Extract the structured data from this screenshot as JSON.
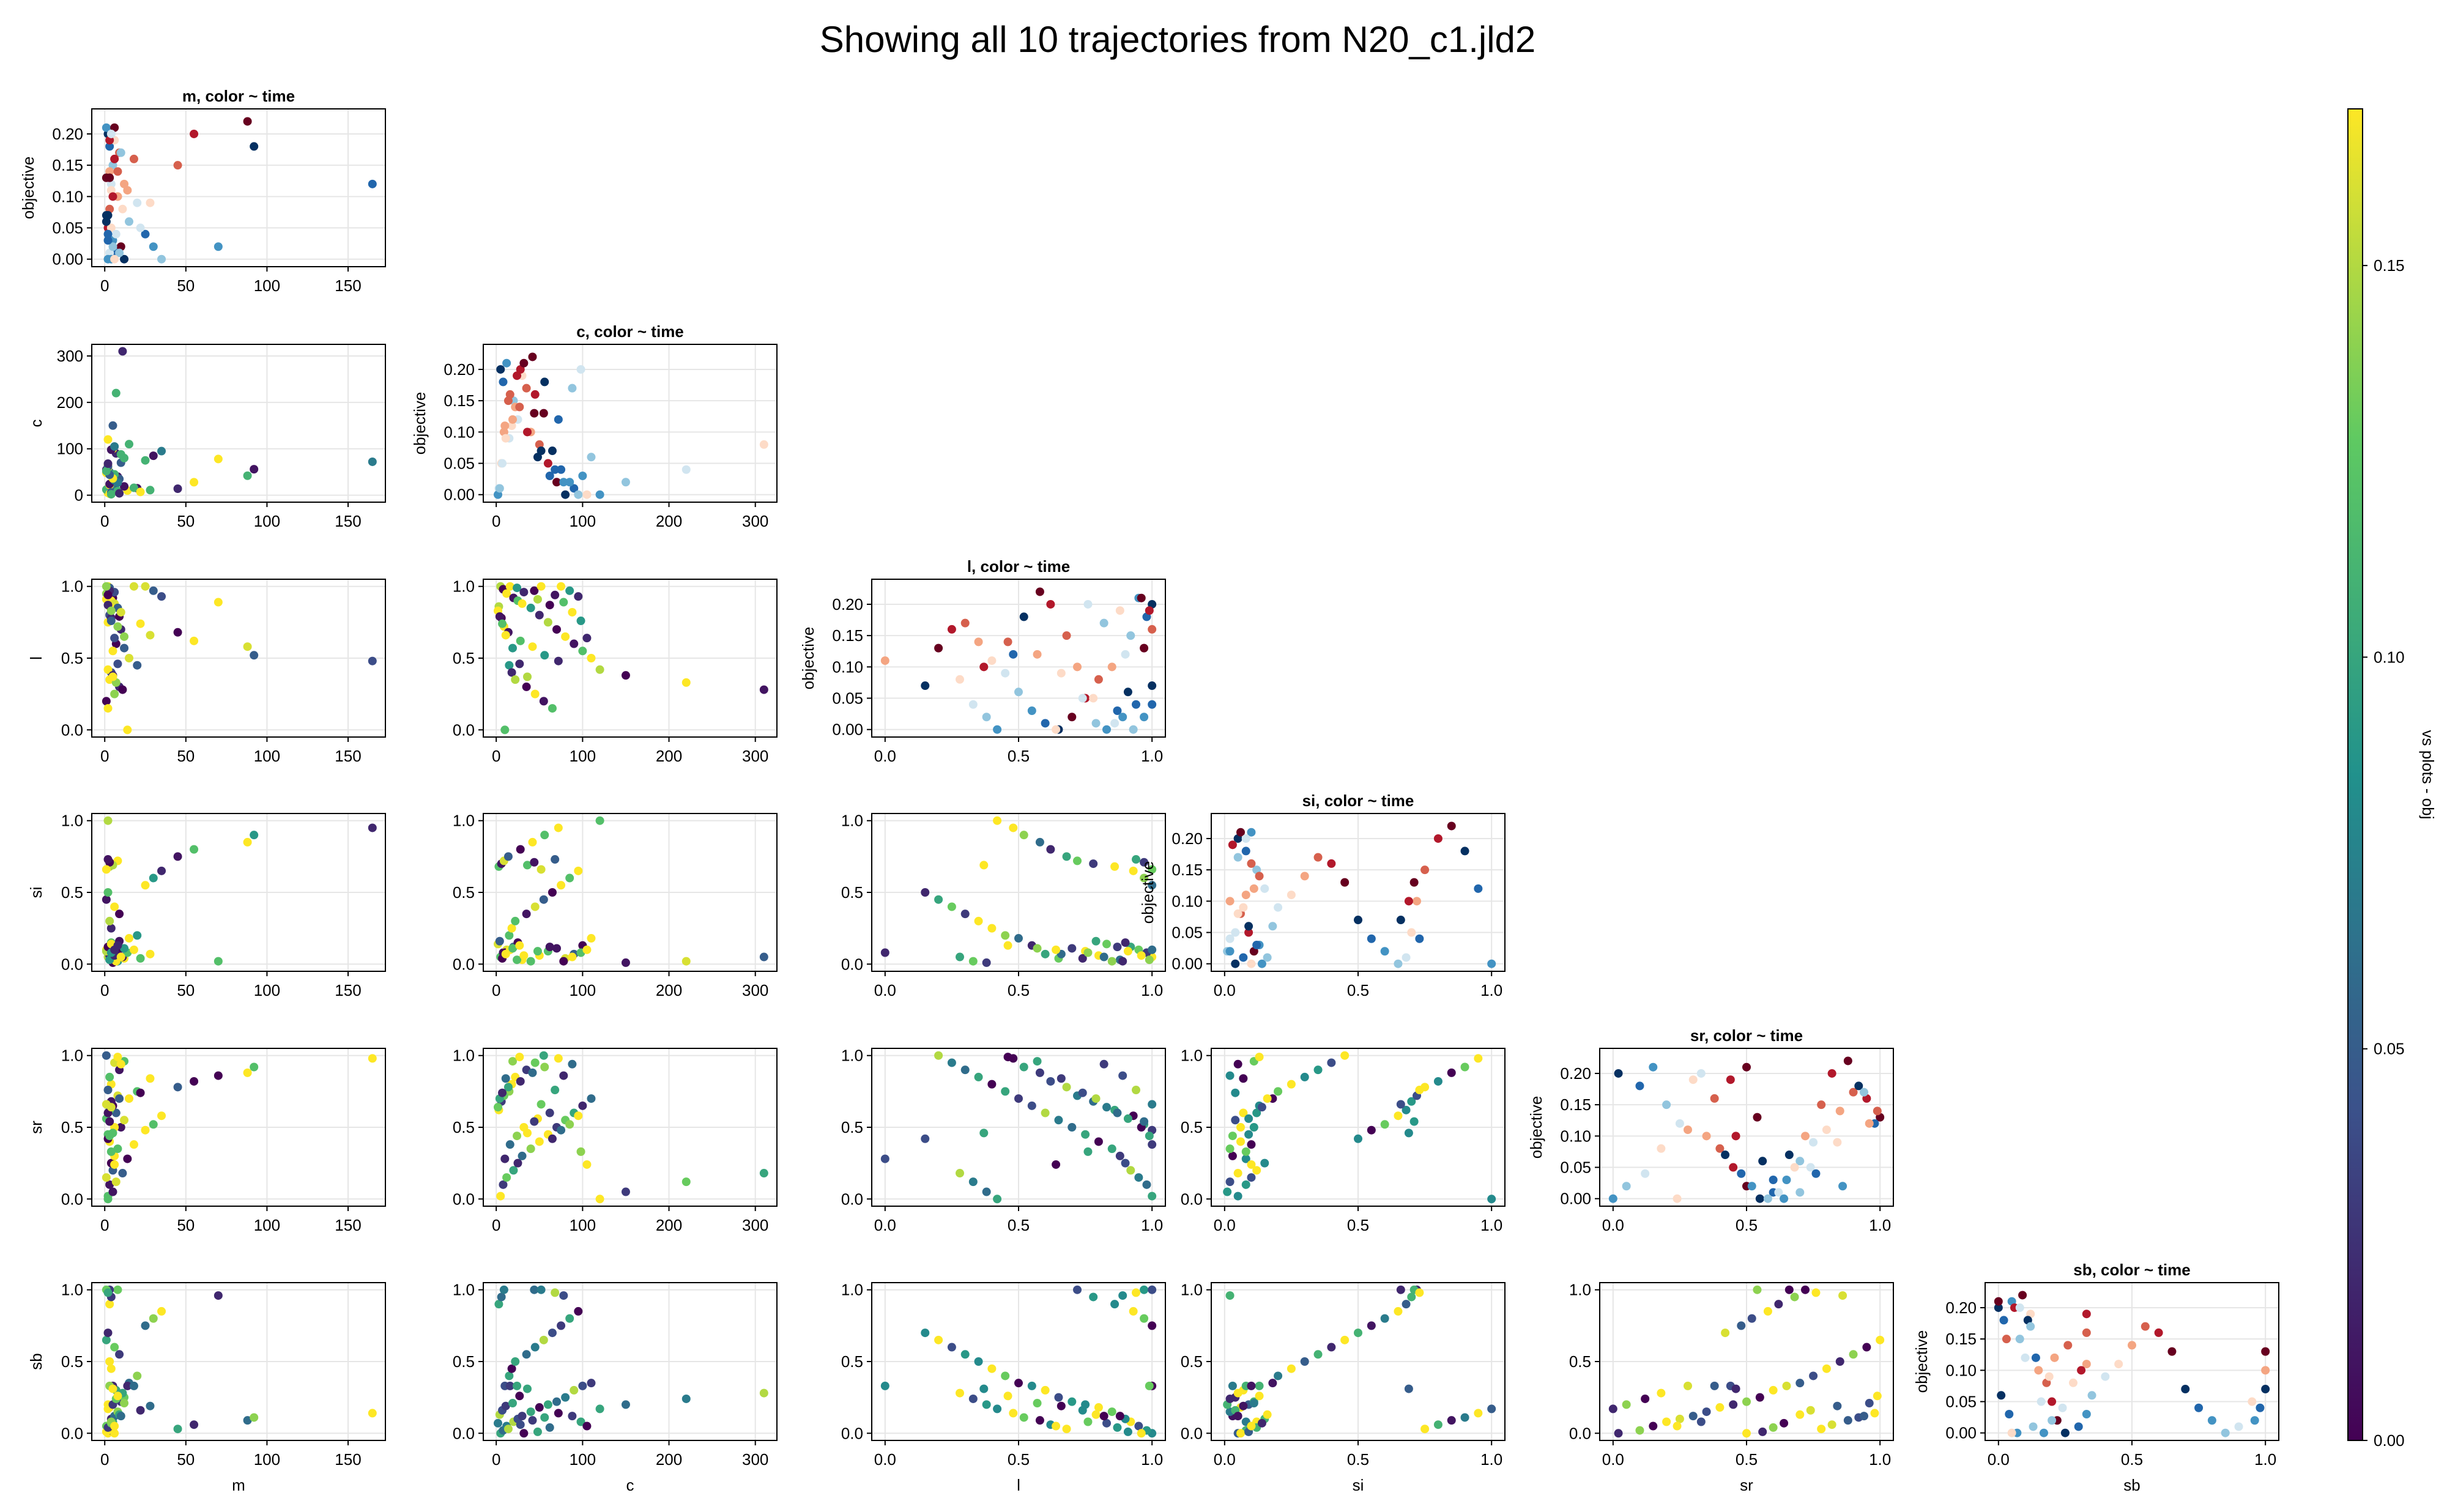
{
  "page": {
    "title": "Showing all 10 trajectories from N20_c1.jld2"
  },
  "chart_data": {
    "type": "scatter",
    "title": "Showing all 10 trajectories from N20_c1.jld2",
    "variables": [
      "m",
      "c",
      "l",
      "si",
      "sr",
      "sb"
    ],
    "axis_ranges": {
      "m": [
        -8,
        173
      ],
      "c": [
        -15,
        325
      ],
      "l": [
        -0.05,
        1.05
      ],
      "si": [
        -0.05,
        1.05
      ],
      "sr": [
        -0.05,
        1.05
      ],
      "sb": [
        -0.05,
        1.05
      ],
      "objective": [
        -0.012,
        0.24
      ]
    },
    "ticks": {
      "m": [
        0,
        50,
        100,
        150
      ],
      "c": [
        0,
        100,
        200,
        300
      ],
      "l": [
        0.0,
        0.5,
        1.0
      ],
      "si": [
        0.0,
        0.5,
        1.0
      ],
      "sr": [
        0.0,
        0.5,
        1.0
      ],
      "sb": [
        0.0,
        0.5,
        1.0
      ],
      "objective": [
        0.0,
        0.05,
        0.1,
        0.15,
        0.2
      ]
    },
    "tick_labels": {
      "m": [
        "0",
        "50",
        "100",
        "150"
      ],
      "c": [
        "0",
        "100",
        "200",
        "300"
      ],
      "unit": [
        "0.0",
        "0.5",
        "1.0"
      ],
      "unit_y": [
        "0.0",
        "0.5",
        "1.0"
      ],
      "objective": [
        "0.00",
        "0.05",
        "0.10",
        "0.15",
        "0.20"
      ]
    },
    "diagonal": {
      "ylabel": "objective",
      "title_suffix": ", color ~ time",
      "titles": [
        "m, color ~ time",
        "c, color ~ time",
        "l, color ~ time",
        "si, color ~ time",
        "sr, color ~ time",
        "sb, color ~ time"
      ]
    },
    "off_diagonal_color": "objective",
    "grid": true,
    "colorbar": {
      "label": "vs plots - obj",
      "range": [
        0.0,
        0.17
      ],
      "ticks": [
        0.0,
        0.05,
        0.1,
        0.15
      ],
      "tick_labels": [
        "0.00",
        "0.05",
        "0.10",
        "0.15"
      ],
      "colormap": "viridis"
    },
    "colors": {
      "viridis": [
        "#440154",
        "#3b528b",
        "#21918c",
        "#5ec962",
        "#fde725"
      ],
      "time_map": [
        "#053061",
        "#2166ac",
        "#4393c3",
        "#92c5de",
        "#d1e5f0",
        "#fddbc7",
        "#f4a582",
        "#d6604d",
        "#b2182b",
        "#67001f"
      ]
    },
    "samples": {
      "m": [
        2,
        3,
        1,
        5,
        4,
        6,
        8,
        3,
        2,
        10,
        12,
        7,
        5,
        15,
        20,
        4,
        3,
        9,
        6,
        1,
        2,
        25,
        30,
        35,
        3,
        4,
        8,
        45,
        55,
        88,
        92,
        165,
        2,
        5,
        7,
        11,
        14,
        18,
        3,
        6,
        1,
        2,
        4,
        9,
        22,
        28,
        12,
        8,
        5,
        3,
        1,
        2,
        70,
        10,
        4,
        6
      ],
      "c": [
        5,
        8,
        12,
        20,
        25,
        30,
        40,
        50,
        60,
        70,
        80,
        90,
        100,
        110,
        15,
        18,
        22,
        35,
        45,
        55,
        65,
        75,
        85,
        95,
        3,
        6,
        9,
        14,
        28,
        42,
        56,
        72,
        120,
        150,
        220,
        310,
        10,
        16,
        24,
        32,
        48,
        62,
        2,
        4,
        7,
        11,
        19,
        27,
        36,
        44,
        52,
        68,
        78,
        88,
        98,
        105
      ],
      "l": [
        1.0,
        0.98,
        0.95,
        0.92,
        0.9,
        0.88,
        0.85,
        0.8,
        0.75,
        0.7,
        0.65,
        0.6,
        0.55,
        0.5,
        0.45,
        0.4,
        0.35,
        0.3,
        0.25,
        0.2,
        0.15,
        1.0,
        0.97,
        0.93,
        0.86,
        0.78,
        0.72,
        0.68,
        0.62,
        0.58,
        0.52,
        0.48,
        0.42,
        0.38,
        0.33,
        0.28,
        0.0,
        1.0,
        0.99,
        0.96,
        0.91,
        0.87,
        0.83,
        0.79,
        0.74,
        0.66,
        0.57,
        0.46,
        0.37,
        0.97,
        1.0,
        0.94,
        0.89,
        0.82,
        0.76,
        0.64
      ],
      "si": [
        0.05,
        0.08,
        0.1,
        0.12,
        0.15,
        0.03,
        0.02,
        0.06,
        0.09,
        0.11,
        0.04,
        0.07,
        0.13,
        0.18,
        0.2,
        0.25,
        0.3,
        0.35,
        0.4,
        0.45,
        0.5,
        0.55,
        0.6,
        0.65,
        0.68,
        0.7,
        0.72,
        0.75,
        0.8,
        0.85,
        0.9,
        0.95,
        1.0,
        0.01,
        0.02,
        0.05,
        0.08,
        0.1,
        0.03,
        0.06,
        0.09,
        0.12,
        0.14,
        0.16,
        0.04,
        0.07,
        0.11,
        0.13,
        0.69,
        0.71,
        0.66,
        0.73,
        0.02,
        0.05,
        0.08,
        0.1
      ],
      "sr": [
        0.02,
        0.1,
        0.15,
        0.2,
        0.25,
        0.3,
        0.35,
        0.4,
        0.45,
        0.5,
        0.55,
        0.6,
        0.65,
        0.7,
        0.75,
        0.8,
        0.85,
        0.9,
        0.95,
        1.0,
        0.42,
        0.48,
        0.52,
        0.58,
        0.62,
        0.68,
        0.72,
        0.78,
        0.82,
        0.88,
        0.92,
        0.98,
        0.0,
        0.05,
        0.12,
        0.18,
        0.28,
        0.38,
        0.44,
        0.5,
        0.56,
        0.6,
        0.64,
        0.7,
        0.74,
        0.84,
        0.96,
        0.99,
        0.46,
        0.54,
        0.66,
        0.76,
        0.86,
        0.94,
        0.33,
        0.24
      ],
      "sb": [
        0.0,
        0.02,
        0.05,
        0.08,
        0.1,
        0.12,
        0.15,
        0.18,
        0.2,
        0.22,
        0.25,
        0.3,
        0.33,
        0.35,
        0.4,
        0.45,
        0.5,
        0.55,
        0.6,
        0.65,
        0.7,
        0.75,
        0.8,
        0.85,
        0.9,
        0.95,
        1.0,
        0.03,
        0.06,
        0.09,
        0.11,
        0.14,
        0.17,
        0.2,
        0.24,
        0.28,
        0.33,
        0.33,
        0.33,
        0.0,
        0.01,
        0.04,
        0.07,
        0.13,
        0.16,
        0.19,
        0.21,
        0.26,
        0.31,
        1.0,
        1.0,
        0.98,
        0.96,
        0.12,
        0.08,
        0.05
      ],
      "objective": [
        0.2,
        0.18,
        0.21,
        0.15,
        0.12,
        0.19,
        0.1,
        0.08,
        0.05,
        0.02,
        0.0,
        0.01,
        0.03,
        0.06,
        0.09,
        0.11,
        0.14,
        0.17,
        0.16,
        0.13,
        0.07,
        0.04,
        0.02,
        0.0,
        0.01,
        0.05,
        0.1,
        0.15,
        0.2,
        0.22,
        0.18,
        0.12,
        0.0,
        0.02,
        0.04,
        0.08,
        0.11,
        0.16,
        0.19,
        0.21,
        0.06,
        0.03,
        0.0,
        0.01,
        0.05,
        0.09,
        0.12,
        0.14,
        0.1,
        0.13,
        0.07,
        0.04,
        0.02,
        0.17,
        0.2,
        0.0
      ]
    }
  }
}
